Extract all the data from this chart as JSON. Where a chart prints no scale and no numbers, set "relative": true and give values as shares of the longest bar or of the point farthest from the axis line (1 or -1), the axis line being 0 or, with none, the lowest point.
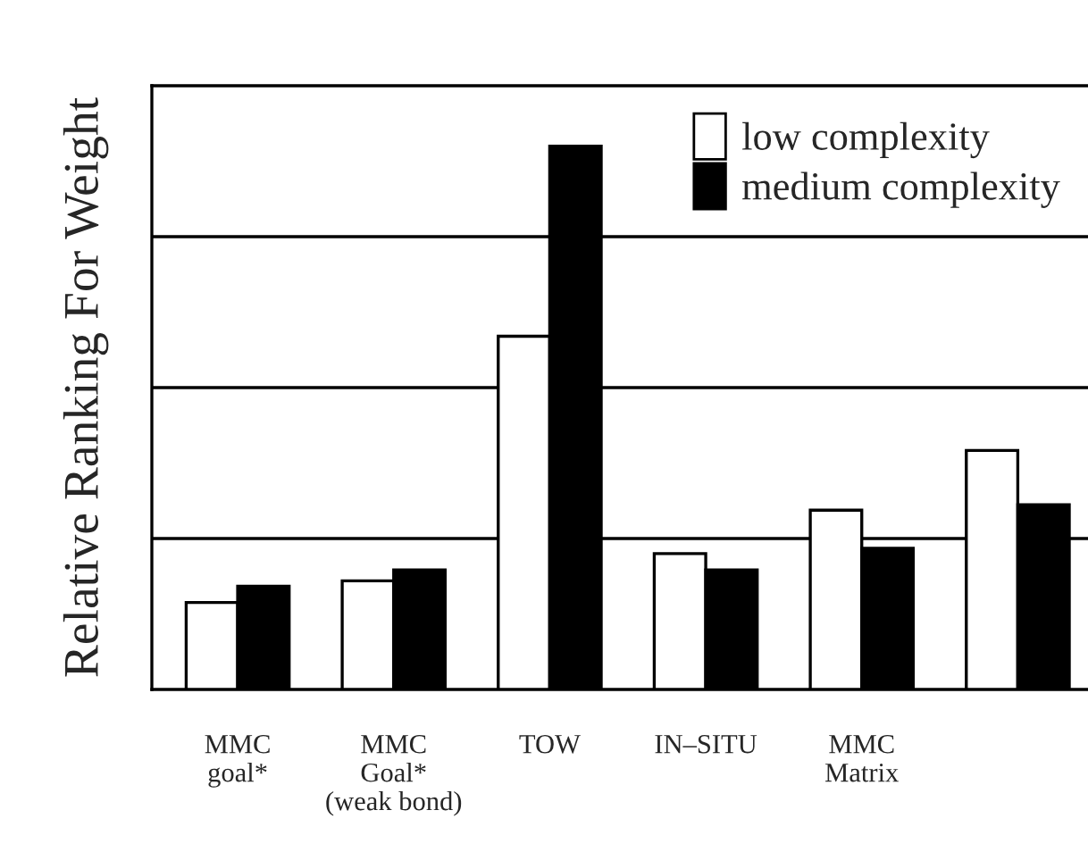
{
  "chart_data": {
    "type": "bar",
    "ylabel": "Relative Ranking For Weight",
    "relative": true,
    "grid": "y",
    "legend": "top right",
    "categories": [
      "MMC\ngoal*",
      "MMC\nGoal*\n(weak bond)",
      "TOW",
      "IN–SITU",
      "MMC\nMatrix",
      null
    ],
    "series": [
      {
        "name": "low complexity",
        "color": "#ffffff",
        "values": [
          0.16,
          0.2,
          0.65,
          0.25,
          0.33,
          0.44
        ]
      },
      {
        "name": "medium complexity",
        "color": "#000000",
        "values": [
          0.19,
          0.22,
          1.0,
          0.22,
          0.26,
          0.34
        ]
      }
    ]
  }
}
